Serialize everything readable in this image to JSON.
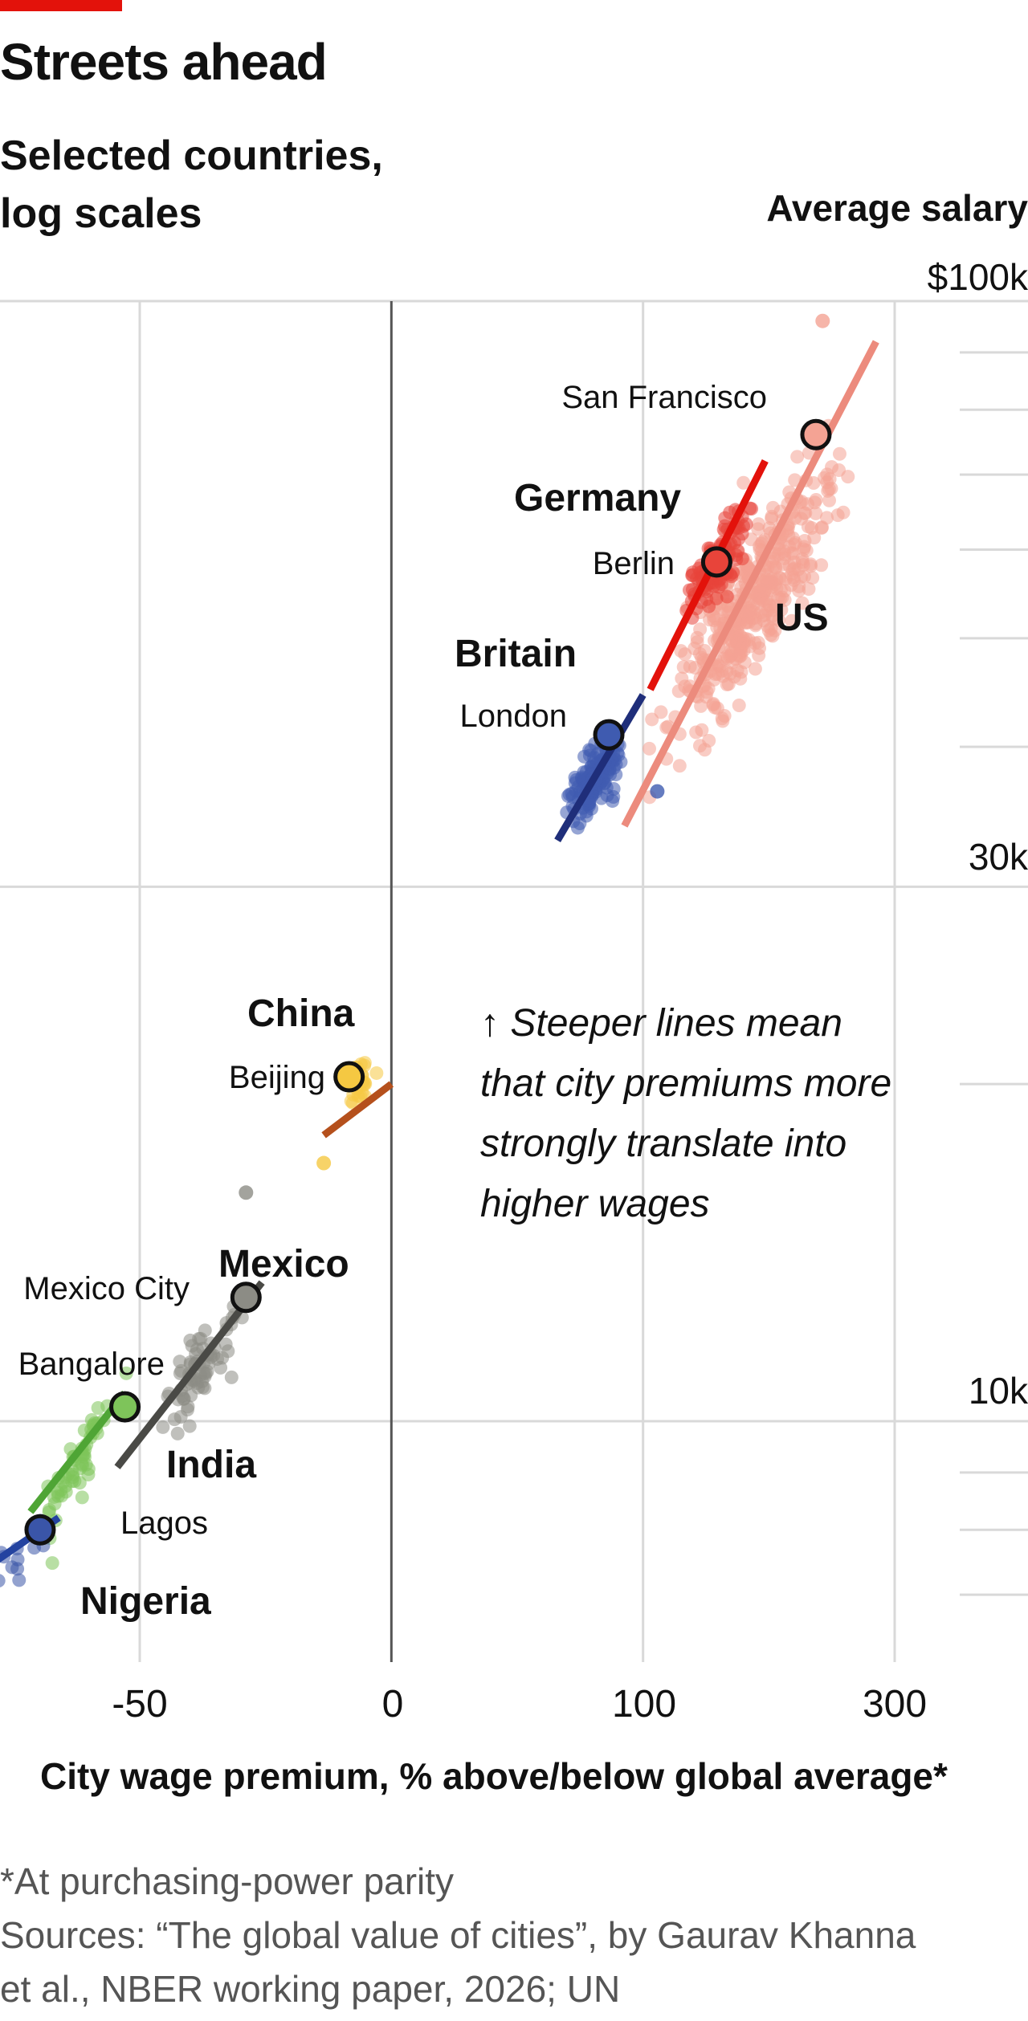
{
  "header": {
    "title": "Streets ahead",
    "subtitle_line1": "Selected countries,",
    "subtitle_line2": "log scales",
    "accent_color": "#e3120b"
  },
  "footer": {
    "note": "*At purchasing-power parity",
    "source_line1": "Sources: “The global value of cities”, by Gaurav Khanna",
    "source_line2": "et al., NBER working paper, 2026; UN"
  },
  "annotation": {
    "line1": "↑ Steeper lines mean",
    "line2": "that city premiums more",
    "line3": "strongly translate into",
    "line4": "higher wages"
  },
  "chart_data": {
    "type": "scatter",
    "title": "Streets ahead",
    "subtitle": "Selected countries, log scales",
    "xlabel": "City wage premium,  % above/below global average*",
    "ylabel": "Average salary",
    "x_scale": "log(1 + premium/100)",
    "y_scale": "log",
    "xlim": [
      -80,
      380
    ],
    "ylim": [
      7000,
      100000
    ],
    "x_ticks": [
      {
        "value": -50,
        "label": "-50"
      },
      {
        "value": 0,
        "label": "0"
      },
      {
        "value": 100,
        "label": "100"
      },
      {
        "value": 300,
        "label": "300"
      }
    ],
    "y_ticks": [
      {
        "value": 100000,
        "label": "$100k"
      },
      {
        "value": 30000,
        "label": "30k"
      },
      {
        "value": 10000,
        "label": "10k"
      }
    ],
    "grid": true,
    "series": [
      {
        "name": "US",
        "color": "#f4a394",
        "line_color": "#ec8b7d",
        "trend": [
          [
            90,
            34000
          ],
          [
            280,
            92000
          ]
        ],
        "highlight": {
          "name": "San Francisco",
          "x": 222,
          "y": 76000
        },
        "cloud": {
          "x_range": [
            95,
            270
          ],
          "slope": 0.98,
          "spread": 0.07,
          "n": 420,
          "anchor": [
            160,
            52000
          ]
        }
      },
      {
        "name": "Germany",
        "color": "#e8443a",
        "line_color": "#e3120b",
        "trend": [
          [
            104,
            45000
          ],
          [
            180,
            72000
          ]
        ],
        "highlight": {
          "name": "Berlin",
          "x": 145,
          "y": 58500
        },
        "cloud": {
          "x_range": [
            115,
            175
          ],
          "slope": 1.0,
          "spread": 0.035,
          "n": 130,
          "anchor": [
            145,
            58500
          ]
        }
      },
      {
        "name": "Britain",
        "color": "#3f5bb0",
        "line_color": "#1f2e7a",
        "trend": [
          [
            58,
            33000
          ],
          [
            100,
            44500
          ]
        ],
        "highlight": {
          "name": "London",
          "x": 82,
          "y": 41000
        },
        "cloud": {
          "x_range": [
            58,
            95
          ],
          "slope": 0.85,
          "spread": 0.03,
          "n": 160,
          "anchor": [
            75,
            37500
          ]
        }
      },
      {
        "name": "China",
        "color": "#f5c842",
        "line_color": "#b5501c",
        "trend": [
          [
            -17,
            18000
          ],
          [
            0,
            20000
          ]
        ],
        "highlight": {
          "name": "Beijing",
          "x": -11,
          "y": 20300
        },
        "cloud": {
          "x_range": [
            -14,
            -3
          ],
          "slope": 0.5,
          "spread": 0.025,
          "n": 22,
          "anchor": [
            -10,
            19800
          ]
        }
      },
      {
        "name": "Mexico",
        "color": "#8c8c85",
        "line_color": "#4a4a46",
        "trend": [
          [
            -53,
            9100
          ],
          [
            -30,
            13300
          ]
        ],
        "highlight": {
          "name": "Mexico City",
          "x": -33,
          "y": 12900
        },
        "cloud": {
          "x_range": [
            -48,
            -32
          ],
          "slope": 0.9,
          "spread": 0.04,
          "n": 70,
          "anchor": [
            -40,
            11300
          ]
        }
      },
      {
        "name": "India",
        "color": "#7ec45a",
        "line_color": "#4fa535",
        "trend": [
          [
            -63,
            8300
          ],
          [
            -52,
            10600
          ]
        ],
        "highlight": {
          "name": "Bangalore",
          "x": -52,
          "y": 10300
        },
        "cloud": {
          "x_range": [
            -63,
            -51
          ],
          "slope": 1.3,
          "spread": 0.03,
          "n": 60,
          "anchor": [
            -57,
            9400
          ]
        }
      },
      {
        "name": "Nigeria",
        "color": "#3a55a8",
        "line_color": "#2443a0",
        "trend": [
          [
            -73,
            6700
          ],
          [
            -60,
            8200
          ]
        ],
        "highlight": {
          "name": "Lagos",
          "x": -62,
          "y": 8000
        },
        "cloud": {
          "x_range": [
            -72,
            -59
          ],
          "slope": 0.6,
          "spread": 0.025,
          "n": 18,
          "anchor": [
            -66,
            7300
          ]
        }
      }
    ],
    "outliers": [
      {
        "series": "US",
        "x": 228,
        "y": 96000
      },
      {
        "series": "China",
        "x": -17,
        "y": 17000
      },
      {
        "series": "Mexico",
        "x": -33,
        "y": 16000
      },
      {
        "series": "Britain",
        "x": 108,
        "y": 36500
      }
    ]
  }
}
